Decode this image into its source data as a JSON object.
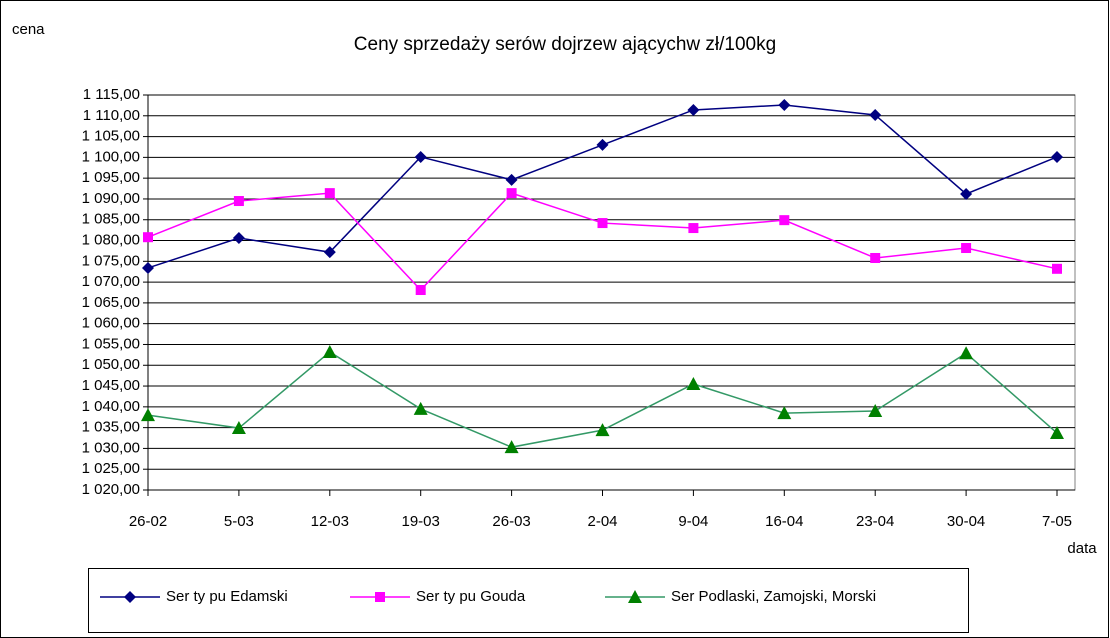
{
  "chart_data": {
    "type": "line",
    "title": "Ceny sprzedaży serów dojrzew ającychw zł/100kg",
    "y_label": "cena",
    "x_label": "data",
    "categories": [
      "26-02",
      "5-03",
      "12-03",
      "19-03",
      "26-03",
      "2-04",
      "9-04",
      "16-04",
      "23-04",
      "30-04",
      "7-05"
    ],
    "series": [
      {
        "name": "Ser ty pu Edamski",
        "color": "#000080",
        "marker": "diamond",
        "values": [
          1073.4,
          1080.6,
          1077.2,
          1100.1,
          1094.6,
          1103,
          1111.4,
          1112.6,
          1110.2,
          1091.2,
          1100.1
        ]
      },
      {
        "name": "Ser ty pu Gouda",
        "color": "#ff00ff",
        "marker": "square",
        "values": [
          1080.8,
          1089.5,
          1091.4,
          1068.1,
          1091.4,
          1084.2,
          1083,
          1084.9,
          1075.8,
          1078.2,
          1073.2
        ]
      },
      {
        "name": "Ser Podlaski, Zamojski, Morski",
        "color": "#339966",
        "marker_color": "#008000",
        "marker": "triangle",
        "values": [
          1038,
          1034.9,
          1053.2,
          1039.5,
          1030.3,
          1034.4,
          1045.5,
          1038.5,
          1039,
          1052.9,
          1033.7
        ]
      }
    ],
    "ylim": [
      1020,
      1115
    ],
    "yticks": [
      {
        "value": 1020,
        "label": "1 020,00"
      },
      {
        "value": 1025,
        "label": "1 025,00"
      },
      {
        "value": 1030,
        "label": "1 030,00"
      },
      {
        "value": 1035,
        "label": "1 035,00"
      },
      {
        "value": 1040,
        "label": "1 040,00"
      },
      {
        "value": 1045,
        "label": "1 045,00"
      },
      {
        "value": 1050,
        "label": "1 050,00"
      },
      {
        "value": 1055,
        "label": "1 055,00"
      },
      {
        "value": 1060,
        "label": "1 060,00"
      },
      {
        "value": 1065,
        "label": "1 065,00"
      },
      {
        "value": 1070,
        "label": "1 070,00"
      },
      {
        "value": 1075,
        "label": "1 075,00"
      },
      {
        "value": 1080,
        "label": "1 080,00"
      },
      {
        "value": 1085,
        "label": "1 085,00"
      },
      {
        "value": 1090,
        "label": "1 090,00"
      },
      {
        "value": 1095,
        "label": "1 095,00"
      },
      {
        "value": 1100,
        "label": "1 100,00"
      },
      {
        "value": 1105,
        "label": "1 105,00"
      },
      {
        "value": 1110,
        "label": "1 110,00"
      },
      {
        "value": 1115,
        "label": "1 115,00"
      }
    ],
    "grid": true,
    "legend": "bottom"
  }
}
